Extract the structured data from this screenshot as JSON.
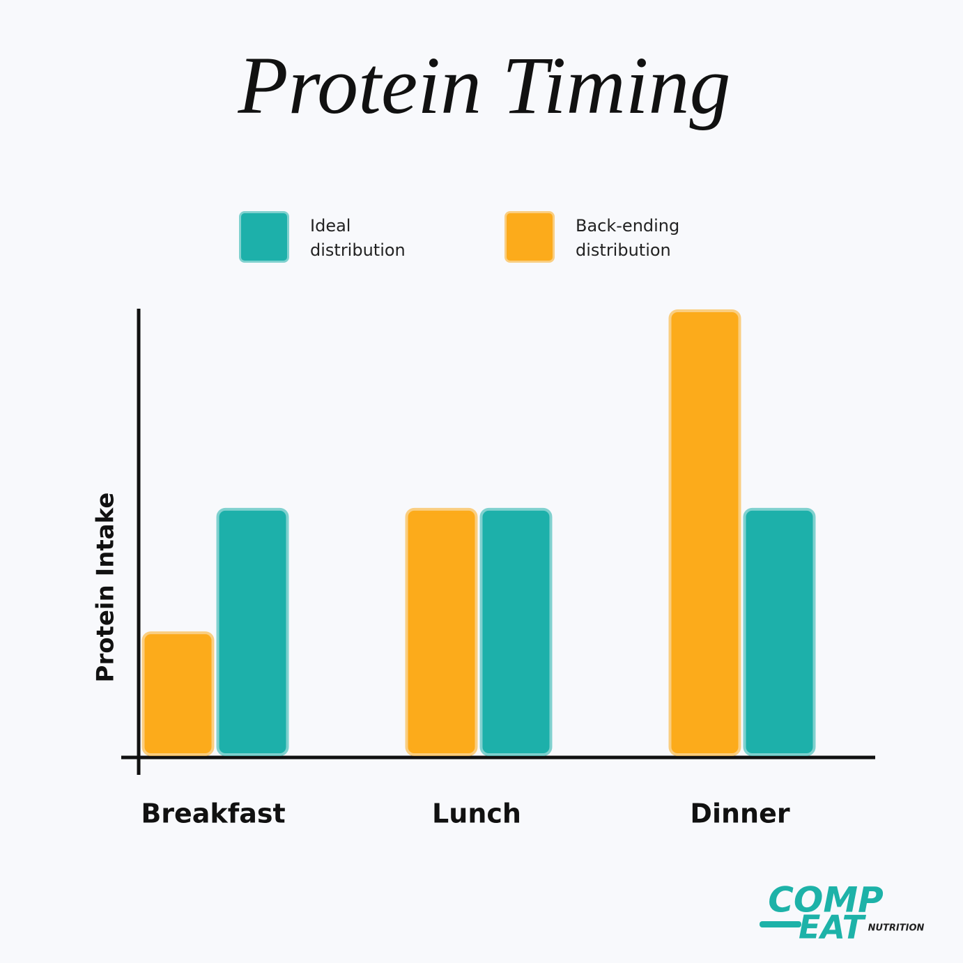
{
  "chart_data": {
    "type": "bar",
    "title": "Protein Timing",
    "y_label": "Protein Intake",
    "categories": [
      "Breakfast",
      "Lunch",
      "Dinner"
    ],
    "series": [
      {
        "name": "Ideal distribution",
        "color": "#1db0aa",
        "values": [
          55,
          55,
          55
        ]
      },
      {
        "name": "Back-ending distribution",
        "color": "#fcab1b",
        "values": [
          27,
          55,
          100
        ]
      }
    ],
    "ylim": [
      0,
      100
    ],
    "grid": false
  },
  "logo": {
    "line1": "COMP",
    "line2": "EAT",
    "tagline": "NUTRITION"
  }
}
